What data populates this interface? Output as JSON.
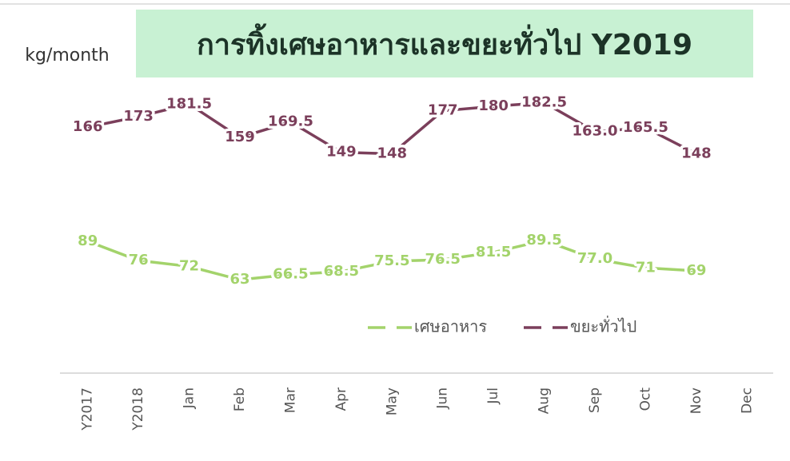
{
  "chart_data": {
    "type": "line",
    "title": "การทิ้งเศษอาหารและขยะทั่วไป Y2019",
    "y_label": "kg/month",
    "categories": [
      "Y2017",
      "Y2018",
      "Jan",
      "Feb",
      "Mar",
      "Apr",
      "May",
      "Jun",
      "Jul",
      "Aug",
      "Sep",
      "Oct",
      "Nov",
      "Dec"
    ],
    "series": [
      {
        "name": "เศษอาหาร",
        "color": "#a3d36b",
        "values": [
          89,
          76,
          72,
          63,
          66.5,
          68.5,
          75.5,
          76.5,
          81.5,
          89.5,
          77,
          71,
          69,
          null
        ],
        "value_labels": [
          "89",
          "76",
          "72",
          "63",
          "66.5",
          "68.5",
          "75.5",
          "76.5",
          "81.5",
          "89.5",
          "77.0",
          "71",
          "69",
          null
        ]
      },
      {
        "name": "ขยะทั่วไป",
        "color": "#7b3f5b",
        "values": [
          166,
          173,
          181.5,
          159,
          169.5,
          149,
          148,
          177,
          180,
          182.5,
          163,
          165.5,
          148,
          null
        ],
        "value_labels": [
          "166",
          "173",
          "181.5",
          "159",
          "169.5",
          "149",
          "148",
          "177",
          "180",
          "182.5",
          "163.0",
          "165.5",
          "148",
          null
        ]
      }
    ],
    "ylim": [
      0,
      200
    ],
    "legend": "bottom-right",
    "line_style": "dashed"
  }
}
